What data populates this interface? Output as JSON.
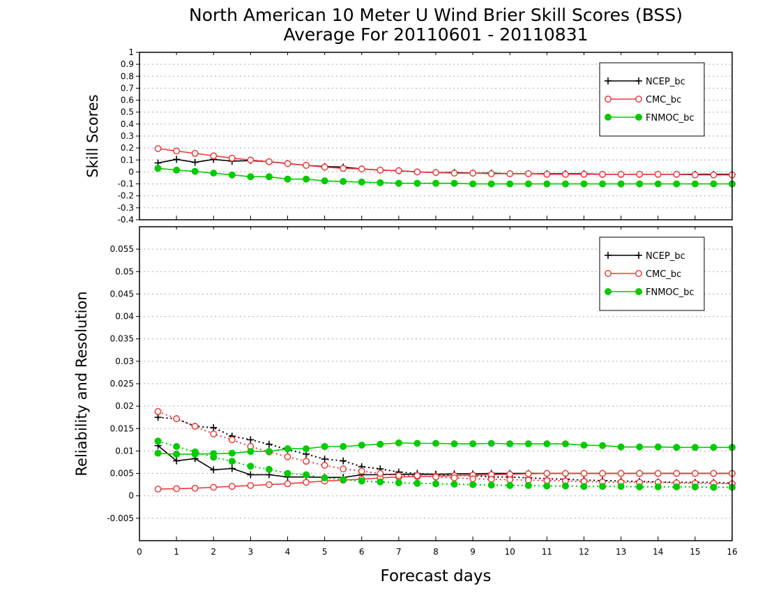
{
  "chart_data": {
    "type": "line",
    "title": "North American 10 Meter U Wind Brier Skill Scores (BSS)",
    "subtitle": "Average For 20110601 - 20110831",
    "xlabel": "Forecast days",
    "xlim": [
      0,
      16
    ],
    "x_ticks": [
      "0",
      "1",
      "2",
      "3",
      "4",
      "5",
      "6",
      "7",
      "8",
      "9",
      "10",
      "11",
      "12",
      "13",
      "14",
      "15",
      "16"
    ],
    "x": [
      0.5,
      1,
      1.5,
      2,
      2.5,
      3,
      3.5,
      4,
      4.5,
      5,
      5.5,
      6,
      6.5,
      7,
      7.5,
      8,
      8.5,
      9,
      9.5,
      10,
      10.5,
      11,
      11.5,
      12,
      12.5,
      13,
      13.5,
      14,
      14.5,
      15,
      15.5,
      16
    ],
    "colors": {
      "NCEP_bc": "#000000",
      "CMC_bc": "#ee3b3b",
      "FNMOC_bc": "#00cc00"
    },
    "panels": [
      {
        "ylabel": "Skill Scores",
        "ylim": [
          -0.4,
          1
        ],
        "y_ticks": [
          "-0.4",
          "-0.3",
          "-0.2",
          "-0.1",
          "0",
          "0.1",
          "0.2",
          "0.3",
          "0.4",
          "0.5",
          "0.6",
          "0.7",
          "0.8",
          "0.9",
          "1"
        ],
        "grid": true,
        "legend_position": "top-right",
        "series": [
          {
            "name": "NCEP_bc",
            "marker": "plus",
            "style": "solid",
            "values": [
              0.075,
              0.105,
              0.08,
              0.105,
              0.09,
              0.095,
              0.085,
              0.07,
              0.055,
              0.045,
              0.04,
              0.025,
              0.015,
              0.01,
              0.0,
              -0.005,
              -0.005,
              -0.01,
              -0.01,
              -0.015,
              -0.015,
              -0.015,
              -0.015,
              -0.015,
              -0.02,
              -0.02,
              -0.02,
              -0.02,
              -0.02,
              -0.02,
              -0.02,
              -0.02
            ]
          },
          {
            "name": "CMC_bc",
            "marker": "open-circle",
            "style": "solid",
            "values": [
              0.195,
              0.175,
              0.155,
              0.135,
              0.115,
              0.1,
              0.085,
              0.07,
              0.055,
              0.04,
              0.03,
              0.025,
              0.015,
              0.01,
              0.0,
              -0.005,
              -0.01,
              -0.01,
              -0.015,
              -0.015,
              -0.015,
              -0.02,
              -0.02,
              -0.02,
              -0.02,
              -0.02,
              -0.02,
              -0.02,
              -0.02,
              -0.025,
              -0.025,
              -0.025
            ]
          },
          {
            "name": "FNMOC_bc",
            "marker": "filled-circle",
            "style": "solid",
            "values": [
              0.03,
              0.015,
              0.005,
              -0.01,
              -0.025,
              -0.04,
              -0.04,
              -0.06,
              -0.06,
              -0.075,
              -0.08,
              -0.085,
              -0.09,
              -0.095,
              -0.095,
              -0.095,
              -0.095,
              -0.1,
              -0.1,
              -0.1,
              -0.1,
              -0.1,
              -0.1,
              -0.1,
              -0.1,
              -0.1,
              -0.1,
              -0.1,
              -0.1,
              -0.1,
              -0.1,
              -0.1
            ]
          }
        ]
      },
      {
        "ylabel": "Reliability and Resolution",
        "ylim": [
          -0.01,
          0.06
        ],
        "y_ticks": [
          "-0.005",
          "0",
          "0.005",
          "0.01",
          "0.015",
          "0.02",
          "0.025",
          "0.03",
          "0.035",
          "0.04",
          "0.045",
          "0.05",
          "0.055"
        ],
        "grid": true,
        "legend_position": "top-right",
        "series": [
          {
            "name": "NCEP_bc",
            "metric": "reliability",
            "marker": "plus",
            "style": "solid",
            "values": [
              0.0112,
              0.0078,
              0.0083,
              0.0058,
              0.0061,
              0.0047,
              0.0047,
              0.0042,
              0.0042,
              0.0041,
              0.0041,
              0.0047,
              0.0047,
              0.0048,
              0.0048,
              0.0048,
              0.0049,
              0.0049,
              0.005,
              0.005,
              0.005,
              0.005,
              0.005,
              0.005,
              0.005,
              0.005,
              0.005,
              0.005,
              0.005,
              0.005,
              0.005,
              0.005
            ]
          },
          {
            "name": "NCEP_bc",
            "metric": "resolution",
            "marker": "plus",
            "style": "dotted",
            "values": [
              0.0175,
              0.0172,
              0.0155,
              0.0152,
              0.0133,
              0.0125,
              0.0115,
              0.0103,
              0.0093,
              0.0082,
              0.0078,
              0.0065,
              0.006,
              0.0053,
              0.005,
              0.0048,
              0.0046,
              0.0045,
              0.0042,
              0.0042,
              0.004,
              0.0038,
              0.0037,
              0.0035,
              0.0034,
              0.0033,
              0.0032,
              0.0031,
              0.003,
              0.003,
              0.003,
              0.0028
            ]
          },
          {
            "name": "CMC_bc",
            "metric": "reliability",
            "marker": "open-circle",
            "style": "solid",
            "values": [
              0.0015,
              0.0016,
              0.0017,
              0.0019,
              0.0021,
              0.0023,
              0.0025,
              0.0027,
              0.003,
              0.0033,
              0.0035,
              0.0037,
              0.004,
              0.0042,
              0.0043,
              0.0044,
              0.0045,
              0.0046,
              0.0047,
              0.0048,
              0.0049,
              0.005,
              0.005,
              0.005,
              0.005,
              0.005,
              0.005,
              0.005,
              0.005,
              0.005,
              0.005,
              0.005
            ]
          },
          {
            "name": "CMC_bc",
            "metric": "resolution",
            "marker": "open-circle",
            "style": "dotted",
            "values": [
              0.0188,
              0.0172,
              0.0155,
              0.0138,
              0.0125,
              0.011,
              0.0098,
              0.0087,
              0.0077,
              0.0068,
              0.006,
              0.0055,
              0.005,
              0.0045,
              0.0045,
              0.0042,
              0.004,
              0.0038,
              0.0037,
              0.0036,
              0.0035,
              0.0034,
              0.0033,
              0.0032,
              0.0031,
              0.003,
              0.003,
              0.003,
              0.0029,
              0.0028,
              0.0028,
              0.0027
            ]
          },
          {
            "name": "FNMOC_bc",
            "metric": "reliability",
            "marker": "filled-circle",
            "style": "solid",
            "values": [
              0.0095,
              0.0093,
              0.0093,
              0.0094,
              0.0095,
              0.0099,
              0.0099,
              0.0105,
              0.0105,
              0.011,
              0.011,
              0.0113,
              0.0115,
              0.0118,
              0.0117,
              0.0117,
              0.0116,
              0.0116,
              0.0117,
              0.0116,
              0.0116,
              0.0116,
              0.0116,
              0.0113,
              0.0112,
              0.0109,
              0.0109,
              0.0109,
              0.0108,
              0.0108,
              0.0108,
              0.0108
            ]
          },
          {
            "name": "FNMOC_bc",
            "metric": "resolution",
            "marker": "filled-circle",
            "style": "dotted",
            "values": [
              0.0122,
              0.011,
              0.0098,
              0.0086,
              0.0077,
              0.0066,
              0.0059,
              0.005,
              0.0047,
              0.004,
              0.0036,
              0.0033,
              0.0031,
              0.0029,
              0.0028,
              0.0027,
              0.0026,
              0.0025,
              0.0024,
              0.0023,
              0.0023,
              0.0022,
              0.0022,
              0.0021,
              0.0021,
              0.0021,
              0.002,
              0.002,
              0.002,
              0.002,
              0.0019,
              0.0019
            ]
          }
        ]
      }
    ]
  }
}
